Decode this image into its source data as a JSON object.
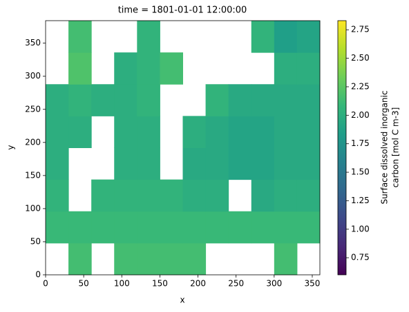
{
  "chart_data": {
    "type": "heatmap",
    "title": "time = 1801-01-01 12:00:00",
    "x_label": "x",
    "y_label": "y",
    "colorbar_label": [
      "Surface dissolved inorganic",
      "carbon [mol C m-3]"
    ],
    "colormap": "viridis",
    "xbins": [
      0,
      30,
      60,
      90,
      120,
      150,
      180,
      210,
      240,
      270,
      300,
      330,
      360
    ],
    "ybins": [
      0,
      48,
      96,
      144,
      192,
      240,
      288,
      336,
      384
    ],
    "z": [
      [
        null,
        2.15,
        null,
        2.15,
        2.15,
        2.15,
        2.15,
        null,
        null,
        null,
        2.15,
        null
      ],
      [
        2.1,
        2.1,
        2.1,
        2.1,
        2.1,
        2.1,
        2.1,
        2.1,
        2.1,
        2.1,
        2.1,
        2.1
      ],
      [
        2.05,
        null,
        2.05,
        2.05,
        2.05,
        2.05,
        2.0,
        2.0,
        null,
        1.95,
        2.0,
        2.0
      ],
      [
        2.0,
        null,
        null,
        2.0,
        2.0,
        null,
        1.95,
        1.95,
        1.9,
        1.9,
        1.95,
        1.95
      ],
      [
        2.0,
        2.0,
        null,
        2.0,
        2.0,
        null,
        2.0,
        1.95,
        1.9,
        1.9,
        1.95,
        1.95
      ],
      [
        2.0,
        2.05,
        2.0,
        2.0,
        2.05,
        null,
        null,
        2.05,
        1.95,
        1.95,
        1.95,
        1.95
      ],
      [
        null,
        2.2,
        null,
        2.0,
        2.05,
        2.15,
        null,
        null,
        null,
        null,
        2.0,
        2.0
      ],
      [
        null,
        2.15,
        null,
        null,
        2.05,
        null,
        null,
        null,
        null,
        2.05,
        1.85,
        1.9
      ]
    ],
    "xlim": [
      0,
      360
    ],
    "ylim": [
      0,
      384
    ],
    "xticks": [
      0,
      50,
      100,
      150,
      200,
      250,
      300,
      350
    ],
    "yticks": [
      0,
      50,
      100,
      150,
      200,
      250,
      300,
      350
    ],
    "clim": [
      0.6,
      2.83
    ],
    "cticks": [
      0.75,
      {
        "value": 1.0,
        "label": "1.00"
      },
      1.25,
      {
        "value": 1.5,
        "label": "1.50"
      },
      1.75,
      {
        "value": 2.0,
        "label": "2.00"
      },
      2.25,
      {
        "value": 2.5,
        "label": "2.50"
      },
      2.75
    ]
  }
}
